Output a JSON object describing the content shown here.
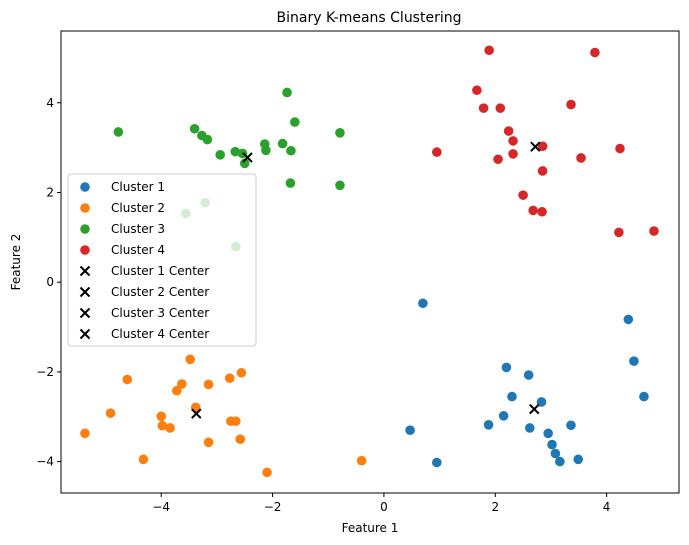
{
  "chart_data": {
    "type": "scatter",
    "title": "Binary K-means Clustering",
    "xlabel": "Feature 1",
    "ylabel": "Feature 2",
    "xlim": [
      -5.8,
      5.3
    ],
    "ylim": [
      -4.7,
      5.6
    ],
    "xticks": [
      -4,
      -2,
      0,
      2,
      4
    ],
    "yticks": [
      -4,
      -2,
      0,
      2,
      4
    ],
    "grid": false,
    "legend_placement": "center-left",
    "series": [
      {
        "name": "Cluster 1",
        "color": "#1f77b4",
        "marker": "circle",
        "points": [
          [
            0.7,
            -0.47
          ],
          [
            4.39,
            -0.83
          ],
          [
            4.49,
            -1.76
          ],
          [
            4.67,
            -2.55
          ],
          [
            2.2,
            -1.9
          ],
          [
            2.6,
            -2.07
          ],
          [
            2.3,
            -2.55
          ],
          [
            2.83,
            -2.67
          ],
          [
            2.15,
            -2.98
          ],
          [
            1.88,
            -3.18
          ],
          [
            2.62,
            -3.25
          ],
          [
            3.36,
            -3.19
          ],
          [
            2.95,
            -3.37
          ],
          [
            3.02,
            -3.62
          ],
          [
            3.08,
            -3.82
          ],
          [
            3.16,
            -4.0
          ],
          [
            3.49,
            -3.95
          ],
          [
            0.47,
            -3.3
          ],
          [
            0.95,
            -4.02
          ]
        ]
      },
      {
        "name": "Cluster 2",
        "color": "#ff7f0e",
        "marker": "circle",
        "points": [
          [
            -3.48,
            -1.72
          ],
          [
            -4.61,
            -2.17
          ],
          [
            -3.63,
            -2.27
          ],
          [
            -3.72,
            -2.42
          ],
          [
            -3.15,
            -2.28
          ],
          [
            -2.77,
            -2.14
          ],
          [
            -2.56,
            -2.02
          ],
          [
            -4.91,
            -2.92
          ],
          [
            -4.0,
            -2.99
          ],
          [
            -3.38,
            -2.79
          ],
          [
            -3.98,
            -3.2
          ],
          [
            -3.84,
            -3.25
          ],
          [
            -2.75,
            -3.1
          ],
          [
            -2.66,
            -3.1
          ],
          [
            -3.15,
            -3.57
          ],
          [
            -2.58,
            -3.5
          ],
          [
            -5.37,
            -3.37
          ],
          [
            -4.32,
            -3.95
          ],
          [
            -2.1,
            -4.24
          ],
          [
            -0.4,
            -3.98
          ]
        ]
      },
      {
        "name": "Cluster 3",
        "color": "#2ca02c",
        "marker": "circle",
        "points": [
          [
            -4.77,
            3.35
          ],
          [
            -3.4,
            3.42
          ],
          [
            -3.27,
            3.27
          ],
          [
            -3.17,
            3.18
          ],
          [
            -2.94,
            2.84
          ],
          [
            -2.67,
            2.91
          ],
          [
            -2.54,
            2.87
          ],
          [
            -2.5,
            2.65
          ],
          [
            -2.14,
            3.08
          ],
          [
            -2.12,
            2.94
          ],
          [
            -1.74,
            4.23
          ],
          [
            -1.6,
            3.57
          ],
          [
            -1.82,
            3.09
          ],
          [
            -1.67,
            2.93
          ],
          [
            -1.68,
            2.21
          ],
          [
            -0.79,
            3.33
          ],
          [
            -0.79,
            2.16
          ],
          [
            -3.56,
            1.53
          ],
          [
            -3.21,
            1.77
          ],
          [
            -2.66,
            0.79
          ]
        ]
      },
      {
        "name": "Cluster 4",
        "color": "#d62728",
        "marker": "circle",
        "points": [
          [
            1.89,
            5.17
          ],
          [
            3.79,
            5.12
          ],
          [
            1.67,
            4.28
          ],
          [
            1.79,
            3.88
          ],
          [
            2.09,
            3.88
          ],
          [
            3.36,
            3.96
          ],
          [
            2.24,
            3.37
          ],
          [
            2.32,
            3.15
          ],
          [
            2.32,
            2.86
          ],
          [
            2.85,
            3.03
          ],
          [
            2.05,
            2.74
          ],
          [
            0.95,
            2.9
          ],
          [
            3.54,
            2.77
          ],
          [
            4.24,
            2.98
          ],
          [
            2.85,
            2.48
          ],
          [
            2.5,
            1.94
          ],
          [
            2.68,
            1.6
          ],
          [
            2.84,
            1.57
          ],
          [
            4.22,
            1.11
          ],
          [
            4.85,
            1.14
          ]
        ]
      }
    ],
    "centers": [
      {
        "name": "Cluster 1 Center",
        "color": "#000000",
        "marker": "x",
        "x": 2.7,
        "y": -2.83
      },
      {
        "name": "Cluster 2 Center",
        "color": "#000000",
        "marker": "x",
        "x": -3.37,
        "y": -2.93
      },
      {
        "name": "Cluster 3 Center",
        "color": "#000000",
        "marker": "x",
        "x": -2.45,
        "y": 2.78
      },
      {
        "name": "Cluster 4 Center",
        "color": "#000000",
        "marker": "x",
        "x": 2.72,
        "y": 3.02
      }
    ]
  }
}
